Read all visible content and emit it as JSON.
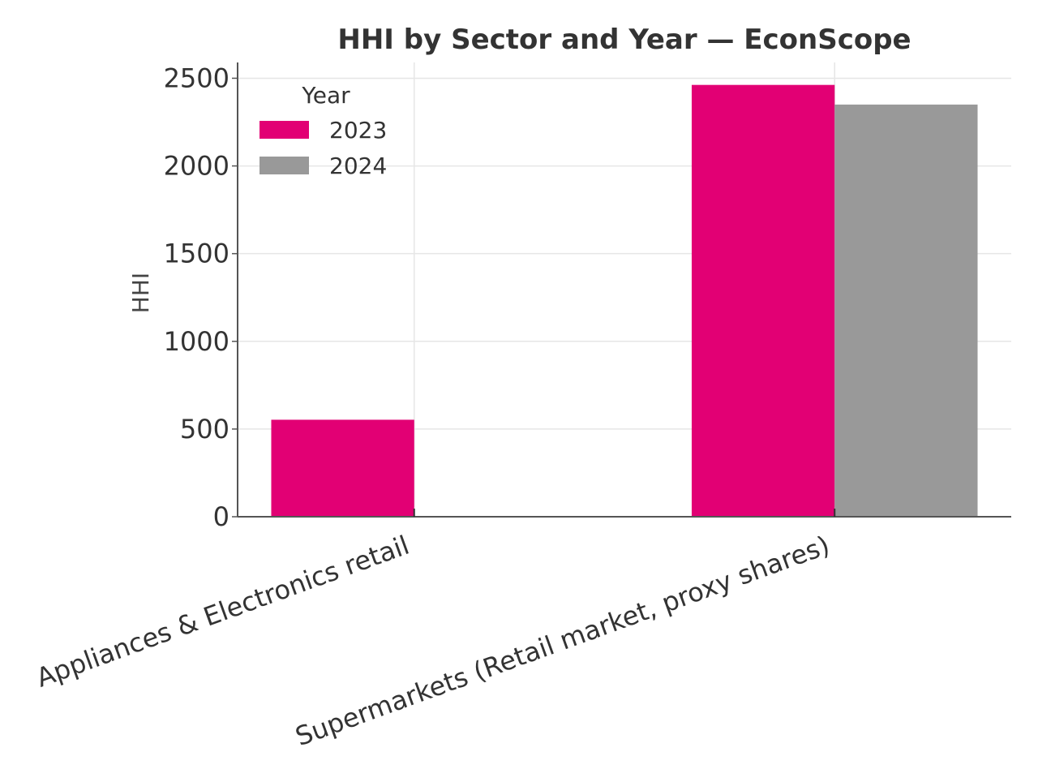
{
  "chart_data": {
    "type": "bar",
    "title": "HHI by Sector and Year — EconScope",
    "xlabel": "",
    "ylabel": "HHI",
    "categories": [
      "Appliances & Electronics retail",
      "Supermarkets (Retail market, proxy shares)"
    ],
    "series": [
      {
        "name": "2023",
        "color": "#e20074",
        "values": [
          553,
          2462
        ]
      },
      {
        "name": "2024",
        "color": "#999999",
        "values": [
          null,
          2350
        ]
      }
    ],
    "ylim": [
      0,
      2590
    ],
    "yticks": [
      0,
      500,
      1000,
      1500,
      2000,
      2500
    ],
    "legend": {
      "title": "Year",
      "position": "top-left"
    },
    "grid": true
  }
}
